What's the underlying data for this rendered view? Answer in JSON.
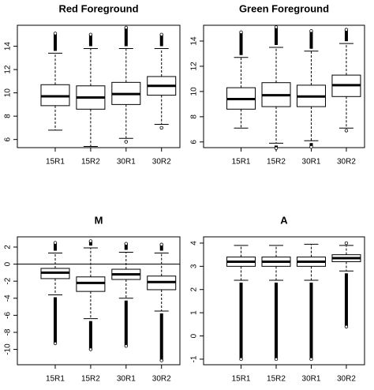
{
  "chart_data": [
    {
      "type": "box",
      "title": "Red Foreground",
      "categories": [
        "15R1",
        "15R2",
        "30R1",
        "30R2"
      ],
      "boxes": [
        {
          "whislo": 6.8,
          "q1": 8.9,
          "med": 9.7,
          "q3": 10.7,
          "whishi": 13.4,
          "out_lo": null,
          "out_hi": 15.1
        },
        {
          "whislo": 5.4,
          "q1": 8.6,
          "med": 9.6,
          "q3": 10.6,
          "whishi": 13.8,
          "out_lo": null,
          "out_hi": 15.0
        },
        {
          "whislo": 6.1,
          "q1": 9.0,
          "med": 9.9,
          "q3": 10.9,
          "whishi": 13.8,
          "out_lo": 5.8,
          "out_hi": 15.6
        },
        {
          "whislo": 7.3,
          "q1": 9.8,
          "med": 10.6,
          "q3": 11.4,
          "whishi": 13.8,
          "out_lo": 7.0,
          "out_hi": 15.0
        }
      ],
      "ylim": [
        5.3,
        15.8
      ],
      "yticks": [
        6,
        8,
        10,
        12,
        14
      ]
    },
    {
      "type": "box",
      "title": "Green Foreground",
      "categories": [
        "15R1",
        "15R2",
        "30R1",
        "30R2"
      ],
      "boxes": [
        {
          "whislo": 7.1,
          "q1": 8.6,
          "med": 9.4,
          "q3": 10.3,
          "whishi": 12.7,
          "out_lo": null,
          "out_hi": 14.7
        },
        {
          "whislo": 5.9,
          "q1": 8.8,
          "med": 9.7,
          "q3": 10.7,
          "whishi": 13.5,
          "out_lo": 5.5,
          "out_hi": 15.1
        },
        {
          "whislo": 6.1,
          "q1": 8.8,
          "med": 9.6,
          "q3": 10.5,
          "whishi": 13.2,
          "out_lo": 5.6,
          "out_hi": 14.8
        },
        {
          "whislo": 7.1,
          "q1": 9.6,
          "med": 10.5,
          "q3": 11.3,
          "whishi": 13.8,
          "out_lo": 6.9,
          "out_hi": 14.9
        }
      ],
      "ylim": [
        5.55,
        15.25
      ],
      "yticks": [
        6,
        8,
        10,
        12,
        14
      ]
    },
    {
      "type": "box",
      "title": "M",
      "categories": [
        "15R1",
        "15R2",
        "30R1",
        "30R2"
      ],
      "boxes": [
        {
          "whislo": -3.6,
          "q1": -1.7,
          "med": -1.0,
          "q3": -0.5,
          "whishi": 1.3,
          "out_lo": -9.3,
          "out_hi": 2.5
        },
        {
          "whislo": -6.4,
          "q1": -3.2,
          "med": -2.2,
          "q3": -1.5,
          "whishi": 1.9,
          "out_lo": -10,
          "out_hi": 2.7
        },
        {
          "whislo": -4.0,
          "q1": -1.8,
          "med": -1.2,
          "q3": -0.6,
          "whishi": 1.4,
          "out_lo": -9.6,
          "out_hi": 2.4
        },
        {
          "whislo": -5.5,
          "q1": -3.0,
          "med": -2.1,
          "q3": -1.4,
          "whishi": 1.3,
          "out_lo": -11.3,
          "out_hi": 2.3
        }
      ],
      "ylim": [
        -11.8,
        3.2
      ],
      "yticks": [
        -10,
        -8,
        -6,
        -4,
        -2,
        0,
        2
      ],
      "hline": 0
    },
    {
      "type": "box",
      "title": "A",
      "categories": [
        "15R1",
        "15R2",
        "30R1",
        "30R2"
      ],
      "boxes": [
        {
          "whislo": 2.4,
          "q1": 3.0,
          "med": 3.2,
          "q3": 3.4,
          "whishi": 3.9,
          "out_lo": -1.0,
          "out_hi": null
        },
        {
          "whislo": 2.4,
          "q1": 3.0,
          "med": 3.2,
          "q3": 3.4,
          "whishi": 3.9,
          "out_lo": -1.0,
          "out_hi": null
        },
        {
          "whislo": 2.4,
          "q1": 3.0,
          "med": 3.2,
          "q3": 3.4,
          "whishi": 3.95,
          "out_lo": -1.0,
          "out_hi": null
        },
        {
          "whislo": 2.8,
          "q1": 3.2,
          "med": 3.35,
          "q3": 3.5,
          "whishi": 3.9,
          "out_lo": 0.4,
          "out_hi": 4.0
        }
      ],
      "ylim": [
        -1.24,
        4.27
      ],
      "yticks": [
        -1,
        0,
        1,
        2,
        3,
        4
      ]
    }
  ]
}
